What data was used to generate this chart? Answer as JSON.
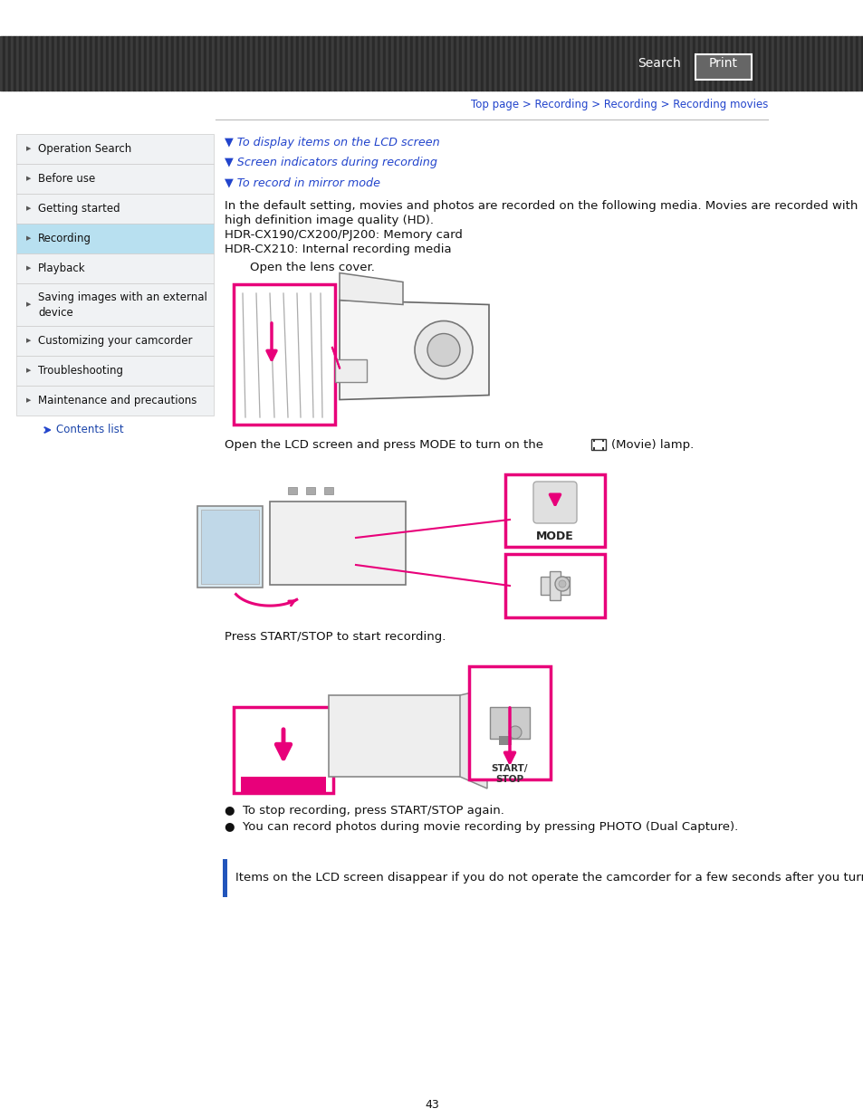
{
  "bg_color": "#ffffff",
  "header_stripe1": "#3c3c3c",
  "header_stripe2": "#2a2a2a",
  "search_text": "Search",
  "print_text": "Print",
  "breadcrumb": "Top page > Recording > Recording > Recording movies",
  "breadcrumb_color": "#2244cc",
  "sidebar_items": [
    "Operation Search",
    "Before use",
    "Getting started",
    "Recording",
    "Playback",
    "Saving images with an external\ndevice",
    "Customizing your camcorder",
    "Troubleshooting",
    "Maintenance and precautions"
  ],
  "sidebar_active": "Recording",
  "sidebar_active_bg": "#b8e0f0",
  "sidebar_bg": "#f0f2f4",
  "sidebar_border": "#cccccc",
  "contents_list_color": "#1a44aa",
  "links": [
    "▼ To display items on the LCD screen",
    "▼ Screen indicators during recording",
    "▼ To record in mirror mode"
  ],
  "link_color": "#2244cc",
  "body_text1a": "In the default setting, movies and photos are recorded on the following media. Movies are recorded with",
  "body_text1b": "high definition image quality (HD).",
  "body_text1c": "HDR-CX190/CX200/PJ200: Memory card",
  "body_text1d": "HDR-CX210: Internal recording media",
  "body_text2": "Open the lens cover.",
  "body_text3a": "Open the LCD screen and press MODE to turn on the",
  "body_text3b": "(Movie) lamp.",
  "body_text4": "Press START/STOP to start recording.",
  "bullet1": "●  To stop recording, press START/STOP again.",
  "bullet2": "●  You can record photos during movie recording by pressing PHOTO (Dual Capture).",
  "blue_bar_text": "Items on the LCD screen disappear if you do not operate the camcorder for a few seconds after you turn",
  "page_number": "43",
  "divider_color": "#bbbbbb",
  "text_color": "#111111",
  "pink_color": "#e8007a",
  "dark_color": "#444444",
  "font_size_body": 9.5,
  "font_size_sidebar": 8.5,
  "font_size_small": 8.0
}
